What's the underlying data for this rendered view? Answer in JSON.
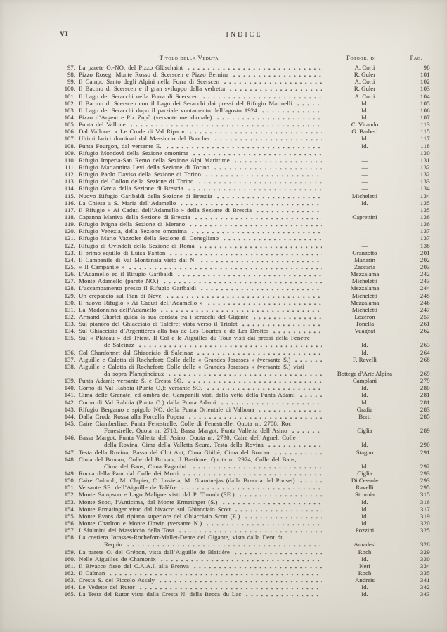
{
  "page": {
    "folio": "VI",
    "header_title": "INDICE",
    "columns": {
      "title": "Titolo della Veduta",
      "photographer": "Fotogr. di",
      "page": "Pag."
    }
  },
  "entries": [
    {
      "num": "97.",
      "title": "La parete O.-NO. del Pizzo Glüschaint",
      "photog": "A. Corti",
      "page": "98"
    },
    {
      "num": "98.",
      "title": "Pizzo Roseg, Monte Rosso di Scerscen e Pizzo Bernina",
      "photog": "R. Guler",
      "page": "101"
    },
    {
      "num": "99.",
      "title": "Il Campo Santo degli Alpini nella Forra di Scerscen",
      "photog": "A. Corti",
      "page": "102"
    },
    {
      "num": "100.",
      "title": "Il Bacino di Scerscen e il gran sviluppo della vedretta",
      "photog": "R. Guler",
      "page": "103"
    },
    {
      "num": "101.",
      "title": "Il Lago dei Seracchi nella Forra di Scerscen",
      "photog": "A. Corti",
      "page": "104"
    },
    {
      "num": "102.",
      "title": "Il Bacino di Scerscen con il Lago dei Seracchi dai pressi del Rifugio Marinelli",
      "photog": "Id.",
      "page": "105"
    },
    {
      "num": "103.",
      "title": "Il Lago dei Seracchi dopo il parziale vuotamento dell’agosto 1924",
      "photog": "Id.",
      "page": "106"
    },
    {
      "num": "104.",
      "title": "Pizzo d’Argent e Piz Zupò (versante meridionale)",
      "photog": "Id.",
      "page": "107"
    },
    {
      "num": "105.",
      "title": "Punta del Vallone",
      "photog": "C. Virando",
      "page": "113"
    },
    {
      "num": "106.",
      "title": "Dal Vallone: « Le Crode di Val Ripa »",
      "photog": "G. Barberi",
      "page": "115"
    },
    {
      "num": "107.",
      "title": "Ultimi larici dominati dal Massiccio del Boucher",
      "photog": "Id.",
      "page": "117"
    },
    {
      "num": "108.",
      "title": "Punta Fourgon, dal versante E.",
      "photog": "Id.",
      "page": "118"
    },
    {
      "num": "109.",
      "title": "Rifugio Mondovì della Sezione omonima",
      "photog": "—",
      "page": "130"
    },
    {
      "num": "110.",
      "title": "Rifugio Imperia-San Remo della Sezione Alpi Marittime",
      "photog": "—",
      "page": "131"
    },
    {
      "num": "111.",
      "title": "Rifugio Mariannina Levi della Sezione di Torino",
      "photog": "—",
      "page": "132"
    },
    {
      "num": "112.",
      "title": "Rifugio Paolo Daviso della Sezione di Torino",
      "photog": "—",
      "page": "132"
    },
    {
      "num": "113.",
      "title": "Rifugio del Collon della Sezione di Torino",
      "photog": "—",
      "page": "133"
    },
    {
      "num": "114.",
      "title": "Rifugio Gavia della Sezione di Brescia",
      "photog": "—",
      "page": "134"
    },
    {
      "num": "115.",
      "title": "Nuovo Rifugio Garibaldi della Sezione di Brescia",
      "photog": "Micheletti",
      "page": "134"
    },
    {
      "num": "116.",
      "title": "La Chiesa a S. Maria dell’Adamello",
      "photog": "Id.",
      "page": "135"
    },
    {
      "num": "117.",
      "title": "Il Rifugio « Ai Caduti dell’Adamello » della Sezione di Brescia",
      "photog": "—",
      "page": "135"
    },
    {
      "num": "118.",
      "title": "Capanna Maniva della Sezione di Brescia",
      "photog": "Caprettini",
      "page": "136"
    },
    {
      "num": "119.",
      "title": "Rifugio Ivigna della Sezione di Merano",
      "photog": "—",
      "page": "136"
    },
    {
      "num": "120.",
      "title": "Rifugio Venezia, della Sezione omonima",
      "photog": "—",
      "page": "137"
    },
    {
      "num": "121.",
      "title": "Rifugio Mario Vazzoler della Sezione di Conegliano",
      "photog": "—",
      "page": "137"
    },
    {
      "num": "122.",
      "title": "Rifugio di Ovindoli della Sezione di Roma",
      "photog": "—",
      "page": "138"
    },
    {
      "num": "123.",
      "title": "Il primo squillo di Luisa Fanton",
      "photog": "Granzotto",
      "page": "201"
    },
    {
      "num": "124.",
      "title": "Il Campanile di Val Montanaia visto dal N.",
      "photog": "Manarin",
      "page": "202"
    },
    {
      "num": "125.",
      "title": "« Il Campanile »",
      "photog": "Zaccaria",
      "page": "203"
    },
    {
      "num": "126.",
      "title": "L’Adamello ed il Rifugio Garibaldi",
      "photog": "Mezzalama",
      "page": "242"
    },
    {
      "num": "127.",
      "title": "Monte Adamello (parete NO.)",
      "photog": "Micheletti",
      "page": "243"
    },
    {
      "num": "128.",
      "title": "L’accampamento presso il Rifugio Garibaldi",
      "photog": "Mezzalama",
      "page": "244"
    },
    {
      "num": "129.",
      "title": "Un crepaccio sul Pian di Neve",
      "photog": "Micheletti",
      "page": "245"
    },
    {
      "num": "130.",
      "title": "Il nuovo Rifugio « Ai Caduti dell’Adamello »",
      "photog": "Mezzalama",
      "page": "246"
    },
    {
      "num": "131.",
      "title": "La Madonnina dell’Adamello",
      "photog": "Micheletti",
      "page": "247"
    },
    {
      "num": "132.",
      "title": "Armand Charlet guida la sua cordata tra i seracchi del Gigante",
      "photog": "Lozeron",
      "page": "257"
    },
    {
      "num": "133.",
      "title": "Sul pianoro del Ghiacciaio di Talèfre: vista verso il Triolet",
      "photog": "Tonella",
      "page": "261"
    },
    {
      "num": "134.",
      "title": "Sul Ghiacciaio d’Argentières alla bas de Les Courtes e de Les Droites",
      "photog": "Vuagnat",
      "page": "262"
    },
    {
      "num": "135.",
      "title": "Sul « Plateau » del Trient. Il Col e le Aiguilles du Tour visti dai pressi della Fenétre",
      "title2": "de Saleinaz",
      "photog": "Id.",
      "page": "263"
    },
    {
      "num": "136.",
      "title": "Col Chardonnet dal Ghiacciaio di Saleinaz",
      "photog": "Id.",
      "page": "264"
    },
    {
      "num": "137.",
      "title": "Aiguille e Calotta di Rochefort; Colle delle « Grandes Jorasses » (versante S.)",
      "photog": "F. Ravelli",
      "page": "268"
    },
    {
      "num": "138.",
      "title": "Aiguille e Calotta di Rochefort; Colle delle « Grandes Jorasses » (versante S.) visti",
      "title2": "da sopra Plampincieux",
      "photog": "Bottega d’Arte Alpina",
      "page": "269"
    },
    {
      "num": "139.",
      "title": "Punta Adami: versante S. e Cresta SO.",
      "photog": "Camplani",
      "page": "279"
    },
    {
      "num": "140.",
      "title": "Corno di Val Rabbia (Punta O.): versante SO.",
      "photog": "Id.",
      "page": "280"
    },
    {
      "num": "141.",
      "title": "Cima delle Granate, ed ombra dei Campanili visti dalla vetta della Punta Adami",
      "photog": "Id.",
      "page": "281"
    },
    {
      "num": "142.",
      "title": "Corno di Val Rabbia (Punta O.) dalla Punta Adami",
      "photog": "Id.",
      "page": "281"
    },
    {
      "num": "143.",
      "title": "Rifugio Bergamo e spigolo NO. della Punta Orientale di Valbona",
      "photog": "Grafia",
      "page": "283"
    },
    {
      "num": "144.",
      "title": "Dalla Croda Rossa alla Forcella Popera",
      "photog": "Berti",
      "page": "285"
    },
    {
      "num": "145.",
      "title": "Caire Ciamberline, Punta Fenestrelle, Colle di Fenestrelle, Quota m. 2708, Roc",
      "title2": "Fenestrelle, Quota m. 2718, Bassa Margot, Punta Valletta dell’Asino",
      "photog": "Ciglia",
      "page": "289"
    },
    {
      "num": "146.",
      "title": "Bassa Margot, Punta Valletta dell’Asino, Quota m. 2730, Caire dell’Agnel, Colle",
      "title2": "della Rovina, Cima della Valletta Scura, Testa della Rovina",
      "photog": "Id.",
      "page": "290"
    },
    {
      "num": "147.",
      "title": "Testa della Rovina, Bassa del Clot Aut, Cima Ghiliè, Cima del Brocan",
      "photog": "Stagno",
      "page": "291"
    },
    {
      "num": "148.",
      "title": "Cima del Brocan, Colle del Brocan, il Bastione, Quota m. 2974, Colle del Baus,",
      "title2": "Cima del Baus, Cima Paganini.",
      "photog": "Id.",
      "page": "292"
    },
    {
      "num": "149.",
      "title": "Rocca della Paur dal Colle dei Morti",
      "photog": "Ciglia",
      "page": "293"
    },
    {
      "num": "150.",
      "title": "Caire Colomb, M. Clapier, C. Lusiera, M. Giaminejas (dalla Breccia del Ponset)",
      "photog": "Di Cessole",
      "page": "293"
    },
    {
      "num": "151.",
      "title": "Versante SE. dell’Aiguille de Talèfre",
      "photog": "Ravelli",
      "page": "295"
    },
    {
      "num": "152.",
      "title": "Monte Sampson e Lago Maligne visti dal P. Thumb (SE.)",
      "photog": "Strumia",
      "page": "315"
    },
    {
      "num": "153.",
      "title": "Monte Scott, l’Anticima, dal Monte Ermatinger (S.)",
      "photog": "Id.",
      "page": "316"
    },
    {
      "num": "154.",
      "title": "Monte Ermatinger visto dal bivacco sul Ghiacciaio Scott",
      "photog": "Id.",
      "page": "317"
    },
    {
      "num": "155.",
      "title": "Monte Evans dal ripiano superiore del Ghiacciaio Scott (E.)",
      "photog": "Id.",
      "page": "319"
    },
    {
      "num": "156.",
      "title": "Monte Charlton e Monte Unwin (versante N.)",
      "photog": "Id.",
      "page": "320"
    },
    {
      "num": "157.",
      "title": "I Sfulmini del Massiccio della Tosa",
      "photog": "Pozzini",
      "page": "325"
    },
    {
      "num": "158.",
      "title": "La costiera Jorasses-Rochefort-Mallet-Dente del Gigante, vista dalla Dent du",
      "title2": "Requin",
      "photog": "Amadesi",
      "page": "328"
    },
    {
      "num": "159.",
      "title": "La parete O. del Grépon, vista dall’Aiguille de Blaitière",
      "photog": "Roch",
      "page": "329"
    },
    {
      "num": "160.",
      "title": "Nelle Aiguilles de Chamonix",
      "photog": "Id.",
      "page": "330"
    },
    {
      "num": "161.",
      "title": "Il Bivacco fisso del C.A.A.I. alla Brenva",
      "photog": "Neri",
      "page": "334"
    },
    {
      "num": "162.",
      "title": "Il Caïman",
      "photog": "Roch",
      "page": "335"
    },
    {
      "num": "163.",
      "title": "Cresta S. del Piccolo Assaly",
      "photog": "Andreis",
      "page": "341"
    },
    {
      "num": "164.",
      "title": "Le Vedette del Rutor",
      "photog": "Id.",
      "page": "342"
    },
    {
      "num": "165.",
      "title": "La Testa del Rutor vista dalla Cresta N. della Becca du Lac",
      "photog": "Id.",
      "page": "343"
    }
  ]
}
